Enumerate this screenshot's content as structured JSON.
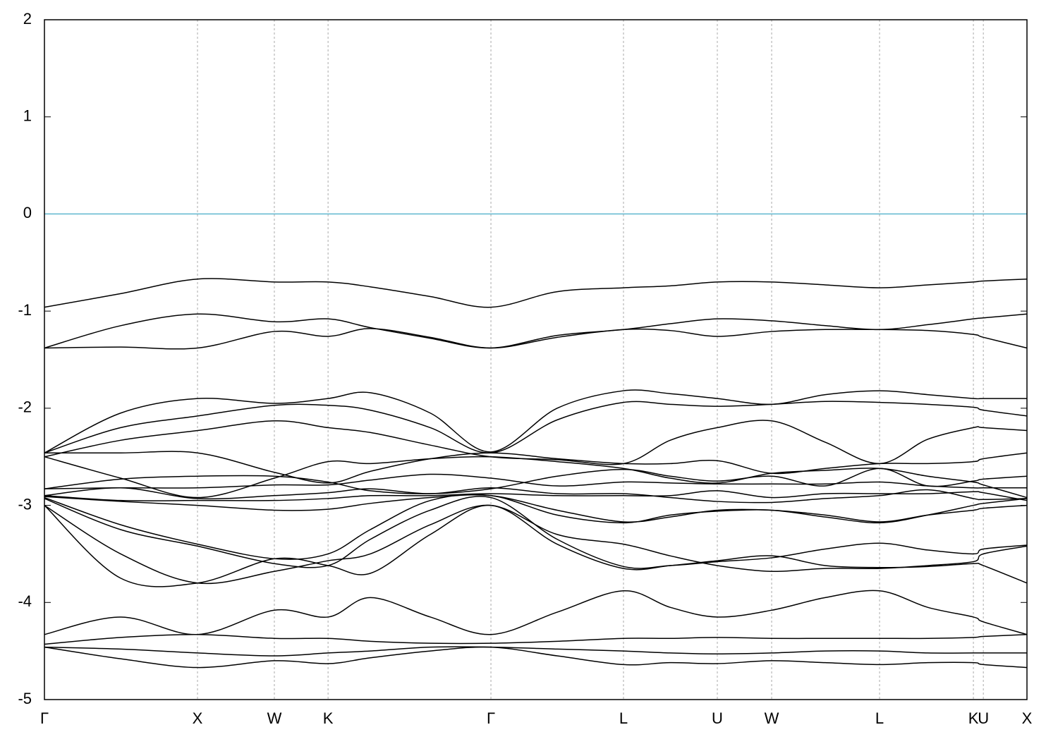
{
  "chart_data": {
    "type": "line",
    "x": [
      0,
      0.498,
      1,
      1.502,
      1.853,
      2.129,
      2.521,
      2.917,
      3.35,
      3.783,
      4.088,
      4.396,
      4.751,
      5.101,
      5.456,
      5.77,
      6.069,
      6.134,
      6.419
    ],
    "xlim": [
      0,
      6.419
    ],
    "xticks": [
      {
        "value": 0,
        "label": "Γ"
      },
      {
        "value": 1,
        "label": "X"
      },
      {
        "value": 1.502,
        "label": "W"
      },
      {
        "value": 1.853,
        "label": "K"
      },
      {
        "value": 2.917,
        "label": "Γ"
      },
      {
        "value": 3.783,
        "label": "L"
      },
      {
        "value": 4.396,
        "label": "U"
      },
      {
        "value": 4.751,
        "label": "W"
      },
      {
        "value": 5.456,
        "label": "L"
      },
      {
        "value": 6.069,
        "label": "K"
      },
      {
        "value": 6.134,
        "label": "U"
      },
      {
        "value": 6.419,
        "label": "X"
      }
    ],
    "ylim": [
      -5,
      2
    ],
    "yticks": [
      -5,
      -4,
      -3,
      -2,
      -1,
      0,
      1,
      2
    ],
    "fermi_level": 0,
    "fermi_color": "#5fb7cf",
    "series": [
      {
        "color": "#000000",
        "values": [
          -0.96,
          -0.82,
          -0.67,
          -0.7,
          -0.7,
          -0.75,
          -0.85,
          -0.96,
          -0.8,
          -0.76,
          -0.74,
          -0.7,
          -0.7,
          -0.73,
          -0.76,
          -0.73,
          -0.7,
          -0.69,
          -0.67
        ]
      },
      {
        "color": "#000000",
        "values": [
          -1.38,
          -1.15,
          -1.03,
          -1.11,
          -1.08,
          -1.17,
          -1.28,
          -1.38,
          -1.25,
          -1.19,
          -1.13,
          -1.08,
          -1.1,
          -1.15,
          -1.19,
          -1.14,
          -1.08,
          -1.07,
          -1.03
        ]
      },
      {
        "color": "#000000",
        "values": [
          -1.38,
          -1.37,
          -1.38,
          -1.21,
          -1.26,
          -1.18,
          -1.27,
          -1.38,
          -1.27,
          -1.19,
          -1.2,
          -1.26,
          -1.21,
          -1.19,
          -1.19,
          -1.2,
          -1.24,
          -1.27,
          -1.38
        ]
      },
      {
        "color": "#000000",
        "values": [
          -2.46,
          -2.05,
          -1.9,
          -1.95,
          -1.9,
          -1.84,
          -2.05,
          -2.45,
          -2.0,
          -1.82,
          -1.85,
          -1.9,
          -1.96,
          -1.86,
          -1.82,
          -1.86,
          -1.9,
          -1.9,
          -1.9
        ]
      },
      {
        "color": "#000000",
        "values": [
          -2.46,
          -2.2,
          -2.08,
          -1.97,
          -1.97,
          -2.02,
          -2.2,
          -2.46,
          -2.12,
          -1.94,
          -1.96,
          -1.98,
          -1.96,
          -1.93,
          -1.94,
          -1.96,
          -1.99,
          -2.02,
          -2.08
        ]
      },
      {
        "color": "#000000",
        "values": [
          -2.5,
          -2.33,
          -2.23,
          -2.13,
          -2.2,
          -2.25,
          -2.38,
          -2.5,
          -2.53,
          -2.57,
          -2.33,
          -2.2,
          -2.13,
          -2.35,
          -2.57,
          -2.32,
          -2.2,
          -2.2,
          -2.23
        ]
      },
      {
        "color": "#000000",
        "values": [
          -2.46,
          -2.46,
          -2.46,
          -2.66,
          -2.77,
          -2.65,
          -2.52,
          -2.46,
          -2.52,
          -2.57,
          -2.57,
          -2.54,
          -2.67,
          -2.62,
          -2.57,
          -2.57,
          -2.55,
          -2.52,
          -2.46
        ]
      },
      {
        "color": "#000000",
        "values": [
          -2.5,
          -2.72,
          -2.92,
          -2.72,
          -2.55,
          -2.57,
          -2.52,
          -2.5,
          -2.55,
          -2.62,
          -2.72,
          -2.77,
          -2.67,
          -2.64,
          -2.62,
          -2.7,
          -2.76,
          -2.79,
          -2.92
        ]
      },
      {
        "color": "#000000",
        "values": [
          -2.83,
          -2.73,
          -2.7,
          -2.7,
          -2.76,
          -2.85,
          -2.88,
          -2.83,
          -2.7,
          -2.63,
          -2.7,
          -2.75,
          -2.7,
          -2.8,
          -2.62,
          -2.8,
          -2.75,
          -2.73,
          -2.7
        ]
      },
      {
        "color": "#000000",
        "values": [
          -2.83,
          -2.82,
          -2.82,
          -2.79,
          -2.79,
          -2.74,
          -2.68,
          -2.72,
          -2.8,
          -2.76,
          -2.77,
          -2.78,
          -2.78,
          -2.78,
          -2.76,
          -2.8,
          -2.82,
          -2.82,
          -2.82
        ]
      },
      {
        "color": "#000000",
        "values": [
          -2.9,
          -2.82,
          -2.93,
          -2.9,
          -2.87,
          -2.83,
          -2.88,
          -2.82,
          -2.88,
          -2.88,
          -2.92,
          -2.96,
          -2.97,
          -2.93,
          -2.9,
          -2.84,
          -2.93,
          -2.94,
          -2.93
        ]
      },
      {
        "color": "#000000",
        "values": [
          -2.9,
          -2.95,
          -2.95,
          -2.95,
          -2.93,
          -2.9,
          -2.9,
          -2.88,
          -2.9,
          -2.9,
          -2.9,
          -2.85,
          -2.92,
          -2.88,
          -2.88,
          -2.88,
          -2.86,
          -2.87,
          -2.95
        ]
      },
      {
        "color": "#000000",
        "values": [
          -2.91,
          -2.96,
          -3.0,
          -3.05,
          -3.04,
          -2.98,
          -2.92,
          -2.9,
          -3.05,
          -3.17,
          -3.12,
          -3.05,
          -3.05,
          -3.1,
          -3.17,
          -3.1,
          -3.05,
          -3.03,
          -3.0
        ]
      },
      {
        "color": "#000000",
        "values": [
          -2.92,
          -3.2,
          -3.4,
          -3.55,
          -3.5,
          -3.25,
          -2.95,
          -2.9,
          -3.1,
          -3.18,
          -3.1,
          -3.06,
          -3.05,
          -3.12,
          -3.18,
          -3.1,
          -3.0,
          -2.98,
          -2.93
        ]
      },
      {
        "color": "#000000",
        "values": [
          -2.93,
          -3.25,
          -3.42,
          -3.6,
          -3.62,
          -3.35,
          -3.05,
          -2.92,
          -3.35,
          -3.63,
          -3.62,
          -3.58,
          -3.54,
          -3.45,
          -3.39,
          -3.46,
          -3.5,
          -3.45,
          -3.41
        ]
      },
      {
        "color": "#000000",
        "values": [
          -3.0,
          -3.5,
          -3.8,
          -3.68,
          -3.57,
          -3.5,
          -3.2,
          -3.0,
          -3.3,
          -3.4,
          -3.52,
          -3.62,
          -3.68,
          -3.65,
          -3.65,
          -3.62,
          -3.58,
          -3.5,
          -3.42
        ]
      },
      {
        "color": "#000000",
        "values": [
          -3.0,
          -3.75,
          -3.8,
          -3.55,
          -3.62,
          -3.7,
          -3.3,
          -3.0,
          -3.4,
          -3.65,
          -3.62,
          -3.57,
          -3.52,
          -3.62,
          -3.64,
          -3.63,
          -3.6,
          -3.62,
          -3.8
        ]
      },
      {
        "color": "#000000",
        "values": [
          -4.33,
          -4.15,
          -4.33,
          -4.08,
          -4.15,
          -3.95,
          -4.15,
          -4.33,
          -4.1,
          -3.88,
          -4.05,
          -4.15,
          -4.08,
          -3.95,
          -3.88,
          -4.05,
          -4.15,
          -4.2,
          -4.33
        ]
      },
      {
        "color": "#000000",
        "values": [
          -4.43,
          -4.36,
          -4.33,
          -4.37,
          -4.37,
          -4.4,
          -4.42,
          -4.42,
          -4.4,
          -4.37,
          -4.37,
          -4.36,
          -4.37,
          -4.37,
          -4.37,
          -4.37,
          -4.36,
          -4.35,
          -4.33
        ]
      },
      {
        "color": "#000000",
        "values": [
          -4.46,
          -4.48,
          -4.52,
          -4.55,
          -4.52,
          -4.5,
          -4.46,
          -4.46,
          -4.48,
          -4.5,
          -4.52,
          -4.53,
          -4.52,
          -4.5,
          -4.5,
          -4.52,
          -4.52,
          -4.52,
          -4.52
        ]
      },
      {
        "color": "#000000",
        "values": [
          -4.46,
          -4.58,
          -4.67,
          -4.6,
          -4.63,
          -4.57,
          -4.5,
          -4.46,
          -4.55,
          -4.64,
          -4.62,
          -4.63,
          -4.6,
          -4.62,
          -4.64,
          -4.62,
          -4.62,
          -4.64,
          -4.67
        ]
      }
    ]
  }
}
